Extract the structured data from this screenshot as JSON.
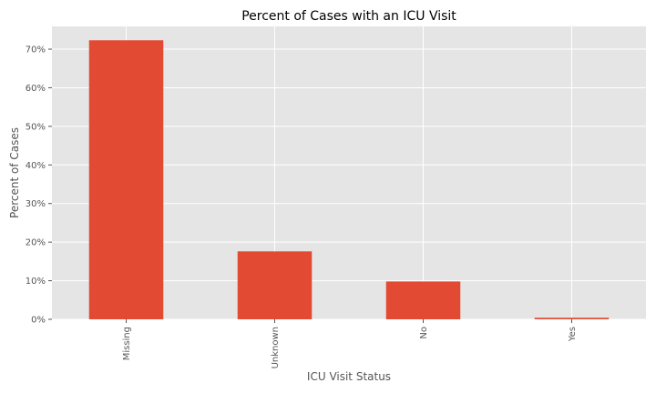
{
  "chart_data": {
    "type": "bar",
    "title": "Percent of Cases with an ICU Visit",
    "xlabel": "ICU Visit Status",
    "ylabel": "Percent of Cases",
    "categories": [
      "Missing",
      "Unknown",
      "No",
      "Yes"
    ],
    "values": [
      72.3,
      17.6,
      9.8,
      0.4
    ],
    "ylim": [
      0,
      75.9
    ],
    "yticks": [
      0,
      10,
      20,
      30,
      40,
      50,
      60,
      70
    ],
    "ytick_labels": [
      "0%",
      "10%",
      "20%",
      "30%",
      "40%",
      "50%",
      "60%",
      "70%"
    ],
    "grid": true,
    "legend": "none",
    "colors": {
      "bar": "#E24A33",
      "plot_background": "#E5E5E5",
      "grid": "#FFFFFF"
    }
  }
}
